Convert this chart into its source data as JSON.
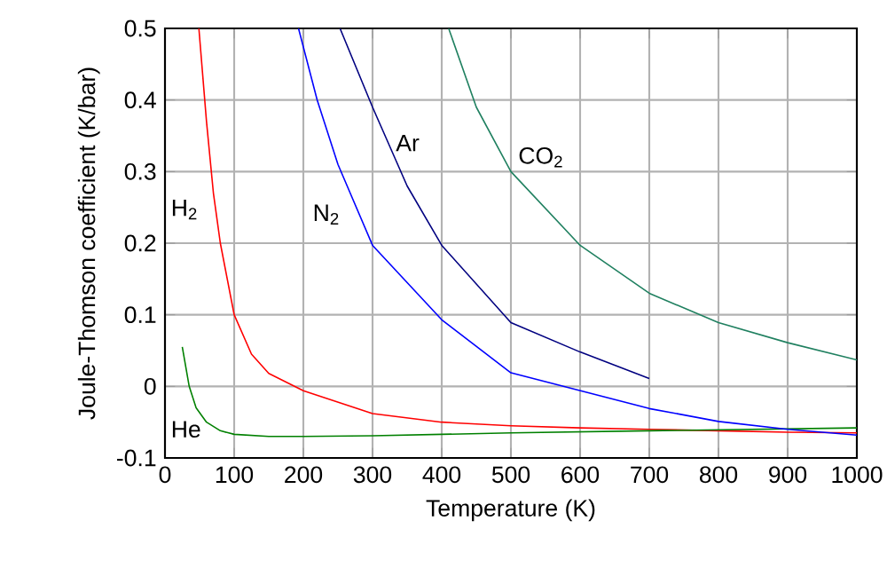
{
  "chart_data": {
    "type": "line",
    "xlabel": "Temperature (K)",
    "ylabel": "Joule-Thomson coefficient (K/bar)",
    "xlim": [
      0,
      1000
    ],
    "ylim": [
      -0.1,
      0.5
    ],
    "xticks": [
      0,
      100,
      200,
      300,
      400,
      500,
      600,
      700,
      800,
      900,
      1000
    ],
    "yticks": [
      -0.1,
      0,
      0.1,
      0.2,
      0.3,
      0.4,
      0.5
    ],
    "grid": true,
    "legend": false,
    "marker": "none",
    "line_style": "solid",
    "series": [
      {
        "name": "H$_{2}$",
        "color": "#ff0000",
        "x": [
          49,
          60,
          70,
          80,
          100,
          125,
          150,
          200,
          300,
          400,
          500,
          600,
          700,
          800,
          900,
          1000
        ],
        "values": [
          0.5,
          0.37,
          0.27,
          0.2,
          0.1,
          0.045,
          0.018,
          -0.006,
          -0.038,
          -0.05,
          -0.055,
          -0.058,
          -0.06,
          -0.062,
          -0.064,
          -0.065
        ]
      },
      {
        "name": "He",
        "color": "#008000",
        "x": [
          25,
          35,
          45,
          60,
          80,
          100,
          150,
          200,
          300,
          500,
          700,
          1000
        ],
        "values": [
          0.055,
          0.0,
          -0.03,
          -0.05,
          -0.062,
          -0.067,
          -0.07,
          -0.07,
          -0.069,
          -0.065,
          -0.062,
          -0.058
        ]
      },
      {
        "name": "N$_{2}$",
        "color": "#0000ff",
        "x": [
          193,
          220,
          250,
          300,
          400,
          500,
          600,
          700,
          800,
          900,
          1000
        ],
        "values": [
          0.5,
          0.4,
          0.31,
          0.197,
          0.093,
          0.019,
          -0.006,
          -0.031,
          -0.049,
          -0.06,
          -0.068
        ]
      },
      {
        "name": "Ar",
        "color": "#000080",
        "x": [
          253,
          300,
          350,
          400,
          500,
          600,
          700
        ],
        "values": [
          0.5,
          0.39,
          0.28,
          0.197,
          0.089,
          0.048,
          0.011
        ]
      },
      {
        "name": "CO$_{2}$",
        "color": "#208060",
        "x": [
          410,
          450,
          500,
          600,
          700,
          800,
          900,
          1000
        ],
        "values": [
          0.5,
          0.39,
          0.3,
          0.197,
          0.13,
          0.089,
          0.061,
          0.037
        ]
      }
    ]
  }
}
